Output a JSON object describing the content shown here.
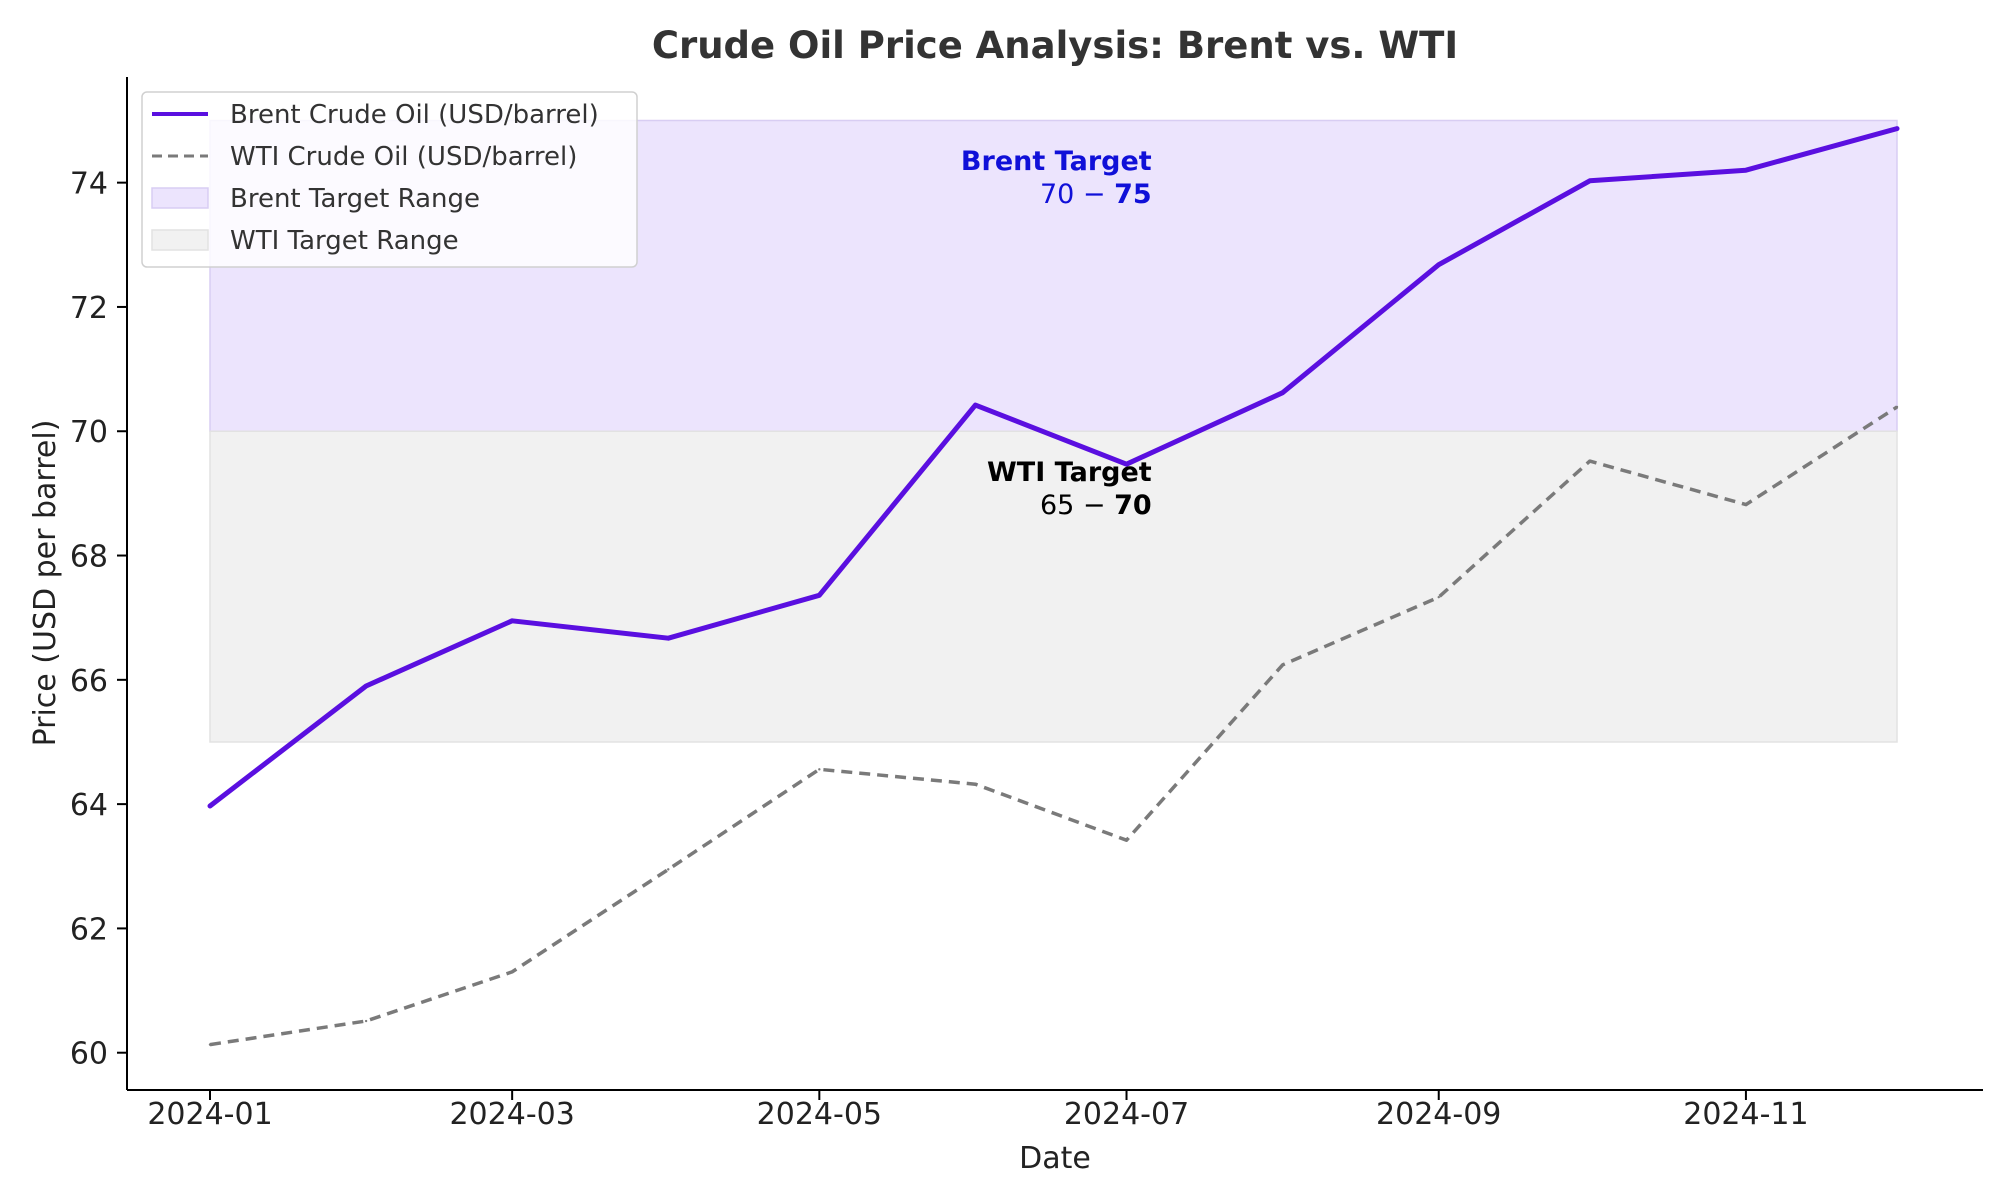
{
  "chart_data": {
    "type": "line",
    "title": "Crude Oil Price Analysis: Brent vs. WTI",
    "xlabel": "Date",
    "ylabel": "Price (USD per barrel)",
    "x": [
      "2024-01-01",
      "2024-02-01",
      "2024-03-01",
      "2024-04-01",
      "2024-05-01",
      "2024-06-01",
      "2024-07-01",
      "2024-08-01",
      "2024-09-01",
      "2024-10-01",
      "2024-11-01",
      "2024-12-01"
    ],
    "x_ticks": [
      "2024-01",
      "2024-03",
      "2024-05",
      "2024-07",
      "2024-09",
      "2024-11"
    ],
    "y_ticks": [
      60,
      62,
      64,
      66,
      68,
      70,
      72,
      74
    ],
    "ylim": [
      59.4,
      75.7
    ],
    "grid": false,
    "legend_position": "top-left",
    "series": [
      {
        "name": "Brent Crude Oil (USD/barrel)",
        "values": [
          63.97,
          65.9,
          66.95,
          66.67,
          67.36,
          70.42,
          69.47,
          70.62,
          72.68,
          74.03,
          74.2,
          74.87
        ],
        "color": "#5a0fe0",
        "style": "solid"
      },
      {
        "name": "WTI Crude Oil (USD/barrel)",
        "values": [
          60.13,
          60.51,
          61.3,
          62.95,
          64.56,
          64.32,
          63.42,
          66.24,
          67.33,
          69.52,
          68.82,
          70.39
        ],
        "color": "#7a7a7a",
        "style": "dashed"
      }
    ],
    "bands": [
      {
        "name": "Brent Target Range",
        "y0": 70,
        "y1": 75,
        "color": "#ece4fd",
        "edge": "#d8cdf3"
      },
      {
        "name": "WTI Target Range",
        "y0": 65,
        "y1": 70,
        "color": "#f1f1f1",
        "edge": "#e2e2e2"
      }
    ],
    "annotations": [
      {
        "label": "Brent Target",
        "range": "70 − 75",
        "range_prefix": "70 − ",
        "range_bold": "75",
        "x": "2024-07-06",
        "y": 74.2,
        "color": "#1010d8"
      },
      {
        "label": "WTI Target",
        "range": "65 − 70",
        "range_prefix": "65 − ",
        "range_bold": "70",
        "x": "2024-07-06",
        "y": 69.2,
        "color": "#000000"
      }
    ]
  }
}
